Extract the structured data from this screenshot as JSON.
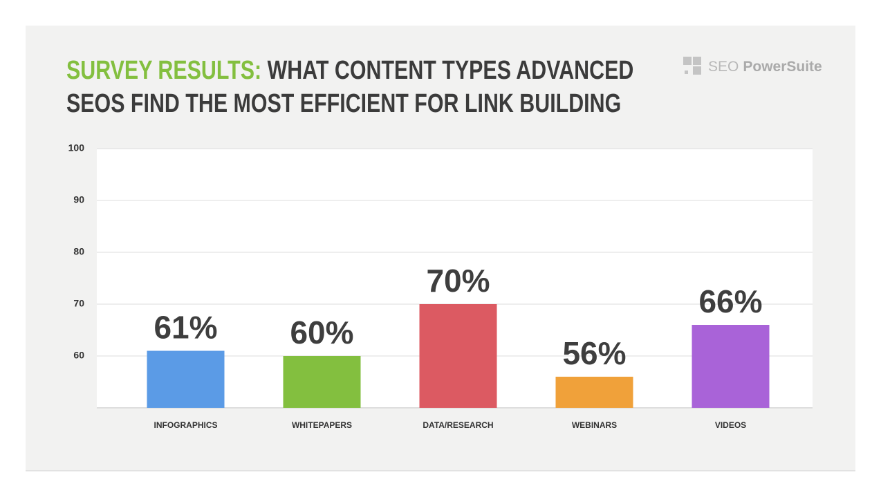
{
  "title_lead": "SURVEY RESULTS:",
  "title": "WHAT CONTENT TYPES ADVANCED SEOS FIND THE MOST EFFICIENT FOR LINK BUILDING",
  "logo": {
    "prefix": "SEO",
    "name": "PowerSuite"
  },
  "chart_data": {
    "type": "bar",
    "categories": [
      "INFOGRAPHICS",
      "WHITEPAPERS",
      "DATA/RESEARCH",
      "WEBINARS",
      "VIDEOS"
    ],
    "series": [
      {
        "name": null,
        "colors": [
          "#5b9be6",
          "#83bf3f",
          "#dc5a62",
          "#f0a13a",
          "#a963d8"
        ],
        "values": [
          61,
          60,
          70,
          56,
          66
        ],
        "value_labels": [
          "61%",
          "60%",
          "70%",
          "56%",
          "66%"
        ]
      }
    ],
    "ylim": [
      50,
      100
    ],
    "yticks": [
      60,
      70,
      80,
      90,
      100
    ],
    "grid": true
  }
}
